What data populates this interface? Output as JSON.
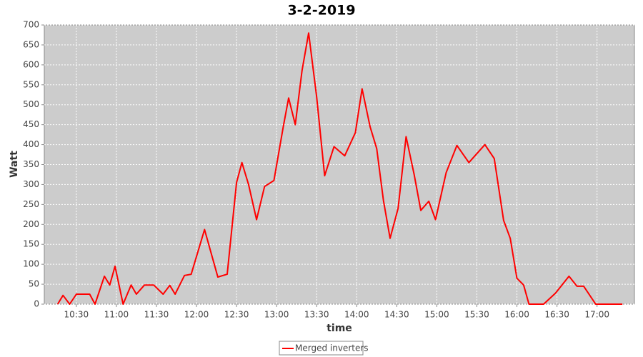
{
  "chart_data": {
    "type": "line",
    "title": "3-2-2019",
    "xlabel": "time",
    "ylabel": "Watt",
    "x": [
      "10:16",
      "10:20",
      "10:25",
      "10:30",
      "10:36",
      "10:40",
      "10:44",
      "10:51",
      "10:55",
      "10:59",
      "11:05",
      "11:11",
      "11:15",
      "11:21",
      "11:28",
      "11:35",
      "11:40",
      "11:44",
      "11:51",
      "11:56",
      "12:06",
      "12:16",
      "12:23",
      "12:30",
      "12:34",
      "12:39",
      "12:45",
      "12:51",
      "12:58",
      "13:05",
      "13:09",
      "13:14",
      "13:19",
      "13:24",
      "13:30",
      "13:36",
      "13:43",
      "13:51",
      "13:59",
      "14:04",
      "14:10",
      "14:15",
      "14:20",
      "14:25",
      "14:31",
      "14:37",
      "14:43",
      "14:48",
      "14:54",
      "14:59",
      "15:07",
      "15:15",
      "15:24",
      "15:36",
      "15:43",
      "15:50",
      "15:55",
      "16:00",
      "16:05",
      "16:09",
      "16:15",
      "16:20",
      "16:29",
      "16:39",
      "16:45",
      "16:50",
      "16:59",
      "17:04",
      "17:19"
    ],
    "series": [
      {
        "name": "Merged inverters",
        "color": "#ff0000",
        "values": [
          0,
          22,
          0,
          25,
          25,
          25,
          0,
          70,
          48,
          95,
          0,
          48,
          25,
          48,
          48,
          25,
          47,
          25,
          72,
          75,
          187,
          68,
          75,
          305,
          355,
          300,
          212,
          295,
          310,
          445,
          517,
          450,
          585,
          680,
          520,
          322,
          395,
          372,
          430,
          540,
          445,
          390,
          260,
          165,
          240,
          420,
          325,
          235,
          258,
          212,
          330,
          398,
          355,
          400,
          365,
          210,
          165,
          65,
          48,
          0,
          0,
          0,
          28,
          70,
          45,
          45,
          0,
          0,
          0
        ]
      }
    ],
    "xlim": [
      "10:06",
      "17:28"
    ],
    "xticks": [
      "10:30",
      "11:00",
      "11:30",
      "12:00",
      "12:30",
      "13:00",
      "13:30",
      "14:00",
      "14:30",
      "15:00",
      "15:30",
      "16:00",
      "16:30",
      "17:00"
    ],
    "ylim": [
      0,
      700
    ],
    "yticks": [
      0,
      50,
      100,
      150,
      200,
      250,
      300,
      350,
      400,
      450,
      500,
      550,
      600,
      650,
      700
    ],
    "grid": true,
    "legend": "bottom"
  }
}
